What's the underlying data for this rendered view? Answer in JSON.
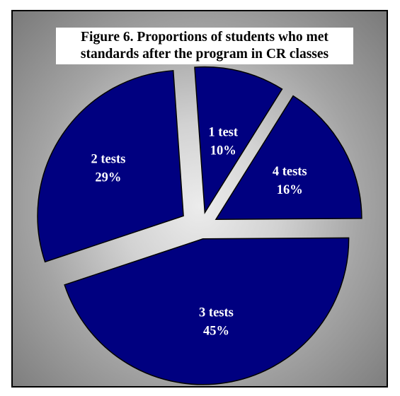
{
  "chart_data": {
    "type": "pie",
    "title_lines": [
      "Figure 6. Proportions of students who met",
      "standards after the program in CR classes"
    ],
    "slices": [
      {
        "name": "1 test",
        "label": "1 test",
        "percent_label": "10%",
        "value": 10
      },
      {
        "name": "4 tests",
        "label": "4 tests",
        "percent_label": "16%",
        "value": 16
      },
      {
        "name": "3 tests",
        "label": "3 tests",
        "percent_label": "45%",
        "value": 45
      },
      {
        "name": "2 tests",
        "label": "2 tests",
        "percent_label": "29%",
        "value": 29
      }
    ],
    "colors": {
      "slice_fill": "#000080",
      "slice_stroke": "#000000",
      "label_text": "#ffffff"
    },
    "legend": "none"
  }
}
